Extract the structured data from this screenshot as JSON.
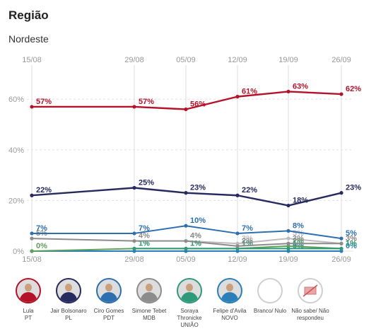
{
  "header": {
    "title": "Região",
    "subtitle": "Nordeste"
  },
  "chart_data": {
    "type": "line",
    "x": [
      "15/08",
      "29/08",
      "05/09",
      "12/09",
      "19/09",
      "26/09"
    ],
    "y_ticks": [
      "0%",
      "20%",
      "40%",
      "60%"
    ],
    "ylim": [
      0,
      65
    ],
    "grid": true,
    "series": [
      {
        "name": "Lula",
        "color": "#b5122a",
        "values": [
          57,
          57,
          56,
          61,
          63,
          62
        ],
        "labels": [
          "57%",
          "57%",
          "56%",
          "61%",
          "63%",
          "62%"
        ]
      },
      {
        "name": "Jair Bolsonaro",
        "color": "#262a5e",
        "values": [
          22,
          25,
          23,
          22,
          18,
          23
        ],
        "labels": [
          "22%",
          "25%",
          "23%",
          "22%",
          "18%",
          "23%"
        ]
      },
      {
        "name": "Ciro Gomes",
        "color": "#2e6fb0",
        "values": [
          7,
          7,
          10,
          7,
          8,
          5
        ],
        "labels": [
          "7%",
          "7%",
          "10%",
          "7%",
          "8%",
          "5%"
        ]
      },
      {
        "name": "Simone Tebet",
        "color": "#8c8c8c",
        "values": [
          5,
          4,
          4,
          2,
          3,
          3
        ],
        "labels": [
          "5%",
          "4%",
          "4%",
          "2%",
          "3%",
          "3%"
        ]
      },
      {
        "name": "Soraya Thronicke",
        "color": "#2f9a7a",
        "values": [
          null,
          1,
          1,
          1,
          1,
          1
        ],
        "labels": [
          "",
          "1%",
          "1%",
          "1%",
          "1%",
          "1%"
        ]
      },
      {
        "name": "Felipe d'Avila",
        "color": "#5fa05a",
        "values": [
          0,
          1,
          1,
          1,
          2,
          1
        ],
        "labels": [
          "0%",
          "1%",
          "1%",
          "1%",
          "2%",
          "1%"
        ]
      },
      {
        "name": "Branco/ Nulo",
        "color": "#bdbdbd",
        "values": [
          null,
          null,
          4,
          3,
          5,
          3
        ],
        "labels": [
          "",
          "",
          "4%",
          "3%",
          "5%",
          "3%"
        ]
      },
      {
        "name": "Não sabe/ Não respondeu",
        "color": "#2b7fb8",
        "values": [
          0,
          0,
          0,
          0,
          0,
          0
        ],
        "labels": [
          "",
          "",
          "",
          "",
          "0%",
          "0%"
        ]
      }
    ]
  },
  "legend": [
    {
      "line1": "Lula",
      "line2": "PT",
      "line3": "",
      "ring": "#b5122a",
      "style": "photo"
    },
    {
      "line1": "Jair Bolsonaro",
      "line2": "PL",
      "line3": "",
      "ring": "#262a5e",
      "style": "photo"
    },
    {
      "line1": "Ciro Gomes",
      "line2": "PDT",
      "line3": "",
      "ring": "#2e6fb0",
      "style": "photo"
    },
    {
      "line1": "Simone Tebet",
      "line2": "MDB",
      "line3": "",
      "ring": "#8c8c8c",
      "style": "photo"
    },
    {
      "line1": "Soraya",
      "line2": "Thronicke",
      "line3": "UNIÃO",
      "ring": "#2f9a7a",
      "style": "photo"
    },
    {
      "line1": "Felipe d'Avila",
      "line2": "NOVO",
      "line3": "",
      "ring": "#2b7fb8",
      "style": "photo"
    },
    {
      "line1": "Branco/ Nulo",
      "line2": "",
      "line3": "",
      "ring": "#cfcfcf",
      "style": "empty"
    },
    {
      "line1": "Não sabe/ Não",
      "line2": "respondeu",
      "line3": "",
      "ring": "#cfcfcf",
      "style": "crossed"
    }
  ]
}
